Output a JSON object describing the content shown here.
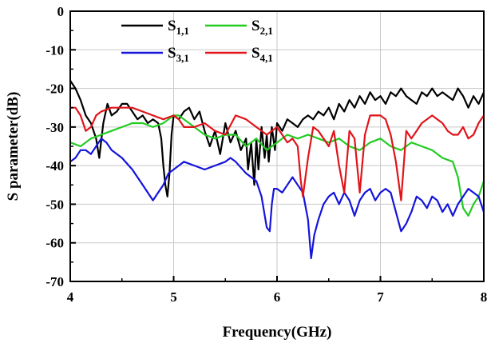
{
  "chart_data": {
    "type": "line",
    "title": "",
    "xlabel": "Frequency(GHz)",
    "ylabel": "S parameter(dB)",
    "xlim": [
      4,
      8
    ],
    "ylim": [
      -70,
      0
    ],
    "xticks": [
      4,
      5,
      6,
      7,
      8
    ],
    "yticks": [
      0,
      -10,
      -20,
      -30,
      -40,
      -50,
      -60,
      -70
    ],
    "grid": true,
    "legend_position": "top-left",
    "series": [
      {
        "name_main": "S",
        "name_sub": "1,1",
        "color": "#000000",
        "x": [
          4.0,
          4.05,
          4.1,
          4.15,
          4.2,
          4.25,
          4.28,
          4.32,
          4.36,
          4.4,
          4.45,
          4.5,
          4.55,
          4.6,
          4.65,
          4.7,
          4.75,
          4.8,
          4.85,
          4.88,
          4.9,
          4.92,
          4.94,
          4.96,
          4.98,
          5.0,
          5.05,
          5.1,
          5.15,
          5.2,
          5.25,
          5.3,
          5.35,
          5.4,
          5.45,
          5.5,
          5.55,
          5.6,
          5.65,
          5.7,
          5.72,
          5.75,
          5.78,
          5.8,
          5.82,
          5.85,
          5.88,
          5.9,
          5.92,
          5.95,
          5.98,
          6.0,
          6.05,
          6.1,
          6.15,
          6.2,
          6.25,
          6.3,
          6.35,
          6.4,
          6.45,
          6.5,
          6.55,
          6.6,
          6.65,
          6.7,
          6.75,
          6.8,
          6.85,
          6.9,
          6.95,
          7.0,
          7.05,
          7.1,
          7.15,
          7.2,
          7.25,
          7.3,
          7.35,
          7.4,
          7.45,
          7.5,
          7.55,
          7.6,
          7.65,
          7.7,
          7.75,
          7.8,
          7.85,
          7.9,
          7.95,
          8.0
        ],
        "y": [
          -18,
          -20,
          -23,
          -27,
          -29,
          -33,
          -38,
          -29,
          -24,
          -27,
          -26,
          -24,
          -24,
          -26,
          -28,
          -27,
          -29,
          -28,
          -29,
          -33,
          -40,
          -45,
          -48,
          -42,
          -32,
          -27,
          -28,
          -26,
          -25,
          -28,
          -26,
          -31,
          -35,
          -31,
          -37,
          -29,
          -34,
          -31,
          -36,
          -33,
          -41,
          -34,
          -45,
          -33,
          -41,
          -30,
          -38,
          -32,
          -39,
          -30,
          -36,
          -29,
          -31,
          -28,
          -29,
          -30,
          -28,
          -27,
          -28,
          -26,
          -27,
          -25,
          -28,
          -24,
          -26,
          -23,
          -25,
          -22,
          -24,
          -21,
          -23,
          -22,
          -24,
          -21,
          -22,
          -20,
          -22,
          -23,
          -24,
          -21,
          -22,
          -20,
          -22,
          -21,
          -22,
          -23,
          -20,
          -22,
          -25,
          -22,
          -24,
          -21
        ]
      },
      {
        "name_main": "S",
        "name_sub": "2,1",
        "color": "#22cc22",
        "x": [
          4.0,
          4.1,
          4.2,
          4.3,
          4.4,
          4.5,
          4.6,
          4.7,
          4.8,
          4.9,
          5.0,
          5.05,
          5.1,
          5.2,
          5.3,
          5.4,
          5.5,
          5.6,
          5.7,
          5.8,
          5.9,
          6.0,
          6.1,
          6.2,
          6.3,
          6.4,
          6.5,
          6.6,
          6.7,
          6.8,
          6.9,
          7.0,
          7.1,
          7.2,
          7.3,
          7.4,
          7.5,
          7.6,
          7.7,
          7.75,
          7.8,
          7.85,
          7.9,
          7.95,
          8.0
        ],
        "y": [
          -34,
          -35,
          -33,
          -32,
          -31,
          -30,
          -29,
          -29,
          -30,
          -29,
          -27,
          -27,
          -28,
          -30,
          -32,
          -33,
          -32,
          -32,
          -35,
          -33,
          -36,
          -34,
          -32,
          -33,
          -32,
          -33,
          -34,
          -33,
          -35,
          -36,
          -34,
          -33,
          -35,
          -36,
          -34,
          -35,
          -36,
          -38,
          -39,
          -43,
          -51,
          -53,
          -50,
          -48,
          -44
        ]
      },
      {
        "name_main": "S",
        "name_sub": "3,1",
        "color": "#1414dc",
        "x": [
          4.0,
          4.05,
          4.1,
          4.15,
          4.2,
          4.25,
          4.3,
          4.35,
          4.4,
          4.5,
          4.6,
          4.7,
          4.8,
          4.85,
          4.9,
          4.95,
          5.0,
          5.05,
          5.1,
          5.2,
          5.3,
          5.4,
          5.5,
          5.55,
          5.6,
          5.7,
          5.8,
          5.85,
          5.9,
          5.93,
          5.95,
          5.97,
          6.0,
          6.05,
          6.1,
          6.15,
          6.2,
          6.25,
          6.3,
          6.33,
          6.36,
          6.4,
          6.45,
          6.5,
          6.55,
          6.6,
          6.65,
          6.7,
          6.75,
          6.8,
          6.85,
          6.9,
          6.95,
          7.0,
          7.05,
          7.1,
          7.15,
          7.2,
          7.25,
          7.3,
          7.35,
          7.4,
          7.45,
          7.5,
          7.55,
          7.6,
          7.65,
          7.7,
          7.75,
          7.8,
          7.85,
          7.9,
          7.95,
          8.0
        ],
        "y": [
          -39,
          -38,
          -36,
          -36,
          -37,
          -35,
          -33,
          -34,
          -36,
          -38,
          -41,
          -45,
          -49,
          -47,
          -45,
          -42,
          -41,
          -40,
          -39,
          -40,
          -41,
          -40,
          -39,
          -38,
          -39,
          -42,
          -44,
          -48,
          -56,
          -57,
          -50,
          -46,
          -46,
          -47,
          -45,
          -43,
          -45,
          -47,
          -54,
          -64,
          -58,
          -54,
          -50,
          -48,
          -47,
          -50,
          -47,
          -49,
          -53,
          -49,
          -47,
          -46,
          -49,
          -47,
          -46,
          -47,
          -52,
          -57,
          -55,
          -52,
          -48,
          -49,
          -51,
          -48,
          -49,
          -52,
          -50,
          -53,
          -50,
          -48,
          -46,
          -47,
          -48,
          -52
        ]
      },
      {
        "name_main": "S",
        "name_sub": "4,1",
        "color": "#e0141a",
        "x": [
          4.0,
          4.05,
          4.1,
          4.15,
          4.2,
          4.25,
          4.3,
          4.4,
          4.5,
          4.6,
          4.7,
          4.8,
          4.9,
          5.0,
          5.05,
          5.1,
          5.2,
          5.3,
          5.4,
          5.5,
          5.6,
          5.7,
          5.8,
          5.9,
          6.0,
          6.05,
          6.1,
          6.15,
          6.2,
          6.23,
          6.25,
          6.3,
          6.35,
          6.4,
          6.45,
          6.5,
          6.55,
          6.6,
          6.65,
          6.7,
          6.75,
          6.8,
          6.85,
          6.9,
          7.0,
          7.05,
          7.1,
          7.15,
          7.2,
          7.25,
          7.3,
          7.35,
          7.4,
          7.45,
          7.5,
          7.55,
          7.6,
          7.65,
          7.7,
          7.75,
          7.8,
          7.85,
          7.9,
          7.95,
          8.0
        ],
        "y": [
          -25,
          -25,
          -27,
          -31,
          -30,
          -27,
          -26,
          -25,
          -25,
          -25,
          -26,
          -27,
          -28,
          -27,
          -28,
          -30,
          -30,
          -29,
          -31,
          -32,
          -27,
          -28,
          -30,
          -32,
          -30,
          -32,
          -34,
          -33,
          -35,
          -44,
          -48,
          -38,
          -30,
          -31,
          -33,
          -35,
          -31,
          -40,
          -47,
          -31,
          -33,
          -47,
          -32,
          -27,
          -27,
          -28,
          -32,
          -39,
          -49,
          -31,
          -33,
          -31,
          -29,
          -28,
          -27,
          -28,
          -29,
          -31,
          -32,
          -32,
          -30,
          -33,
          -32,
          -29,
          -27
        ]
      }
    ]
  }
}
